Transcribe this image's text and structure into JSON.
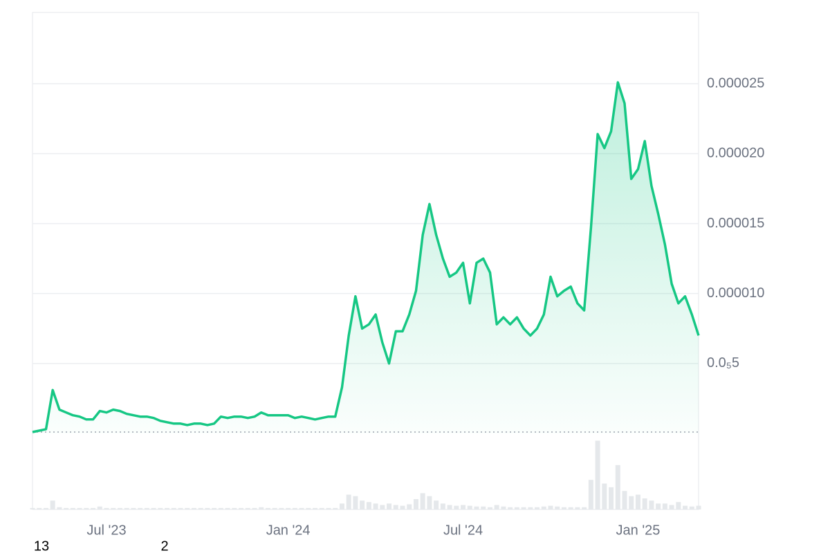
{
  "chart_data": {
    "type": "line",
    "categories": [
      null,
      null,
      null,
      null,
      null,
      null,
      null,
      null,
      null,
      null,
      null,
      "Jul '23",
      null,
      null,
      null,
      null,
      null,
      null,
      null,
      null,
      null,
      null,
      null,
      null,
      null,
      null,
      null,
      null,
      null,
      null,
      null,
      null,
      null,
      null,
      null,
      null,
      null,
      null,
      "Jan '24",
      null,
      null,
      null,
      null,
      null,
      null,
      null,
      null,
      null,
      null,
      null,
      null,
      null,
      null,
      null,
      null,
      null,
      null,
      null,
      null,
      null,
      null,
      null,
      null,
      null,
      "Jul '24",
      null,
      null,
      null,
      null,
      null,
      null,
      null,
      null,
      null,
      null,
      null,
      null,
      null,
      null,
      null,
      null,
      null,
      null,
      null,
      null,
      null,
      null,
      null,
      null,
      null,
      "Jan '25",
      null,
      null,
      null,
      null,
      null,
      null,
      null,
      null,
      null
    ],
    "series": [
      {
        "color": "#16c784",
        "values": [
          1e-07,
          2e-07,
          3e-07,
          3.1e-06,
          1.7e-06,
          1.5e-06,
          1.3e-06,
          1.2e-06,
          1e-06,
          1e-06,
          1.6e-06,
          1.5e-06,
          1.7e-06,
          1.6e-06,
          1.4e-06,
          1.3e-06,
          1.2e-06,
          1.2e-06,
          1.1e-06,
          9e-07,
          8e-07,
          7e-07,
          7e-07,
          6e-07,
          7e-07,
          7e-07,
          6e-07,
          7e-07,
          1.2e-06,
          1.1e-06,
          1.2e-06,
          1.2e-06,
          1.1e-06,
          1.2e-06,
          1.5e-06,
          1.3e-06,
          1.3e-06,
          1.3e-06,
          1.3e-06,
          1.1e-06,
          1.2e-06,
          1.1e-06,
          1e-06,
          1.1e-06,
          1.2e-06,
          1.2e-06,
          3.3e-06,
          7e-06,
          9.8e-06,
          7.5e-06,
          7.8e-06,
          8.5e-06,
          6.5e-06,
          5e-06,
          7.3e-06,
          7.3e-06,
          8.5e-06,
          1.02e-05,
          1.42e-05,
          1.64e-05,
          1.42e-05,
          1.25e-05,
          1.12e-05,
          1.15e-05,
          1.22e-05,
          9.3e-06,
          1.22e-05,
          1.25e-05,
          1.15e-05,
          7.8e-06,
          8.3e-06,
          7.8e-06,
          8.3e-06,
          7.5e-06,
          7e-06,
          7.5e-06,
          8.5e-06,
          1.12e-05,
          9.8e-06,
          1.02e-05,
          1.05e-05,
          9.3e-06,
          8.8e-06,
          1.47e-05,
          2.14e-05,
          2.04e-05,
          2.16e-05,
          2.51e-05,
          2.36e-05,
          1.82e-05,
          1.89e-05,
          2.09e-05,
          1.77e-05,
          1.57e-05,
          1.35e-05,
          1.07e-05,
          9.3e-06,
          9.8e-06,
          8.5e-06,
          7e-06
        ]
      },
      {
        "color": "#e5e8eb",
        "axis": "y2",
        "values": [
          2,
          2,
          2,
          12,
          3,
          2,
          2,
          2,
          2,
          2,
          4,
          2,
          2,
          2,
          2,
          2,
          2,
          2,
          2,
          2,
          2,
          2,
          2,
          2,
          2,
          2,
          2,
          2,
          2,
          2,
          2,
          2,
          2,
          2,
          3,
          2,
          2,
          2,
          2,
          2,
          2,
          2,
          2,
          2,
          2,
          2,
          8,
          20,
          18,
          12,
          10,
          8,
          6,
          8,
          6,
          5,
          7,
          14,
          22,
          18,
          12,
          8,
          6,
          5,
          6,
          5,
          4,
          4,
          3,
          6,
          4,
          3,
          3,
          3,
          3,
          3,
          4,
          5,
          4,
          3,
          3,
          3,
          3,
          40,
          93,
          35,
          30,
          60,
          25,
          18,
          20,
          15,
          12,
          8,
          8,
          6,
          10,
          5,
          4,
          5
        ]
      }
    ],
    "ylim": [
      0,
      3.01e-05
    ],
    "yticks": [
      {
        "value": 5e-06,
        "label": "0.0₅5"
      },
      {
        "value": 1e-05,
        "label": "0.000010"
      },
      {
        "value": 1.5e-05,
        "label": "0.000015"
      },
      {
        "value": 2e-05,
        "label": "0.000020"
      },
      {
        "value": 2.5e-05,
        "label": "0.000025"
      }
    ],
    "y2lim": [
      0,
      100
    ],
    "grid": true,
    "annotations": [
      "13",
      "2"
    ]
  }
}
